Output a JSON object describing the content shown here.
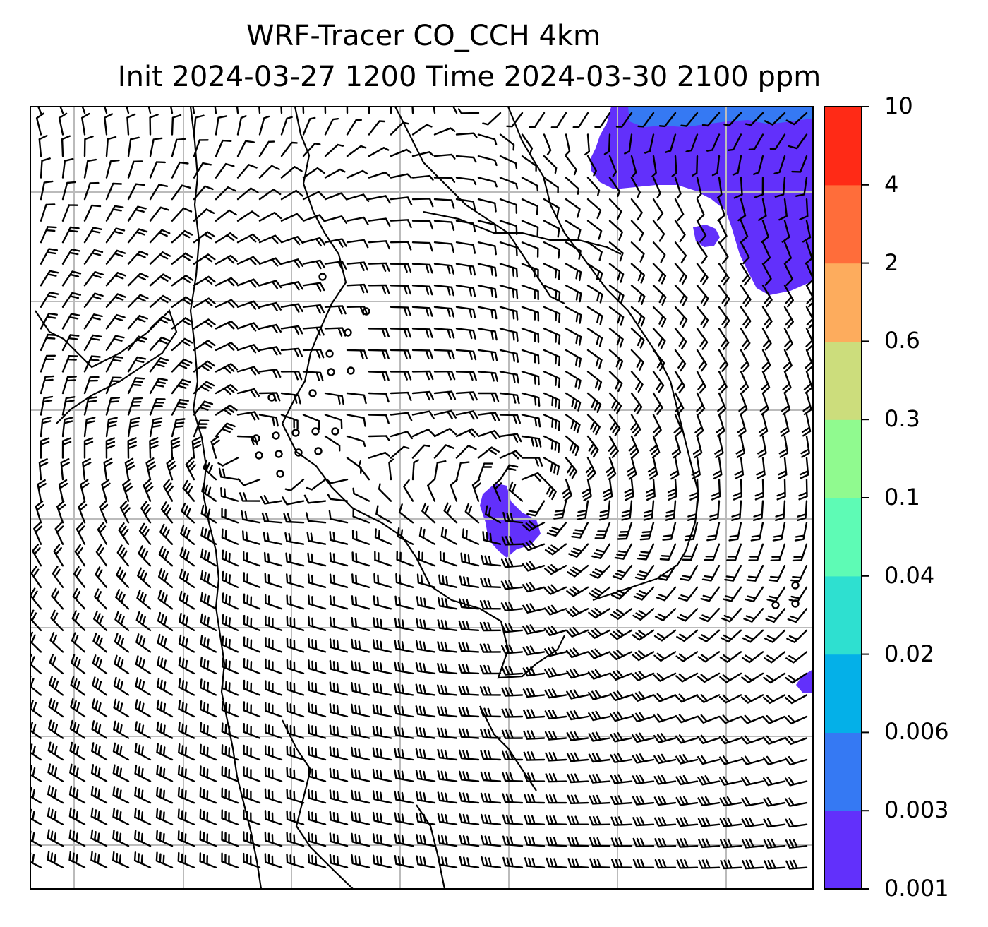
{
  "title": {
    "line1": "WRF-Tracer CO_CCH 4km",
    "line2": "Init 2024-03-27 1200 Time 2024-03-30 2100 ppm"
  },
  "colorbar": {
    "levels": [
      "0.001",
      "0.003",
      "0.006",
      "0.02",
      "0.04",
      "0.1",
      "0.3",
      "0.6",
      "2",
      "4",
      "10"
    ],
    "colors": [
      "#6230fb",
      "#3579f3",
      "#04b0e8",
      "#2ee0d0",
      "#5efbb5",
      "#90fa8f",
      "#ccdd7c",
      "#fdac5d",
      "#ff6d3a",
      "#ff2a16"
    ]
  },
  "map": {
    "plume_color": "#6230fb",
    "plume_dark_color": "#3579f3",
    "grid_color": "#bbbbbb"
  }
}
